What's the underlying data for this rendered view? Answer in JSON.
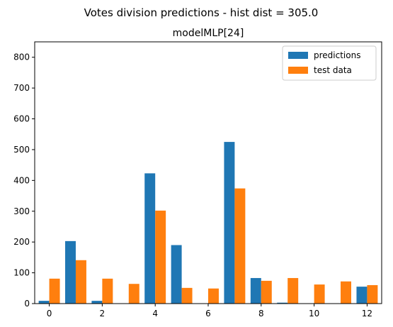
{
  "chart_data": {
    "type": "bar",
    "suptitle": "Votes division predictions - hist dist = 305.0",
    "title": "modelMLP[24]",
    "xlabel": "",
    "ylabel": "",
    "xlim": [
      -0.55,
      12.55
    ],
    "ylim": [
      0,
      850
    ],
    "xticks": [
      0,
      2,
      4,
      6,
      8,
      10,
      12
    ],
    "yticks": [
      0,
      100,
      200,
      300,
      400,
      500,
      600,
      700,
      800
    ],
    "grid": false,
    "legend_position": "top-right",
    "bin_edges": [
      0,
      1,
      2,
      3,
      4,
      5,
      6,
      7,
      8,
      9,
      10,
      11,
      12
    ],
    "series": [
      {
        "name": "predictions",
        "color": "#1f77b4",
        "values": [
          9,
          203,
          9,
          0,
          423,
          190,
          0,
          525,
          83,
          3,
          0,
          0,
          55
        ]
      },
      {
        "name": "test data",
        "color": "#ff7f0e",
        "values": [
          81,
          141,
          81,
          64,
          302,
          51,
          49,
          374,
          74,
          83,
          62,
          72,
          60
        ]
      }
    ]
  }
}
